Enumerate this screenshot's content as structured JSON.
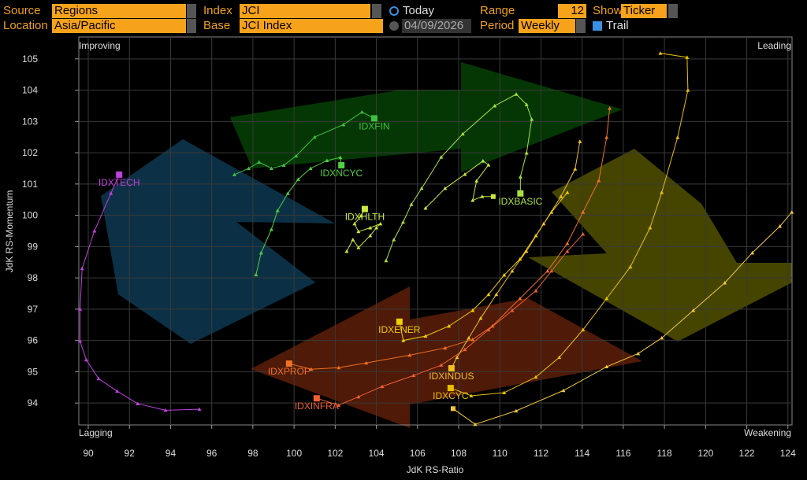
{
  "controls": {
    "source_label": "Source",
    "source": "Regions",
    "index_label": "Index",
    "index": "JCI",
    "today": "Today",
    "range_label": "Range",
    "range": "12",
    "show_label": "Show",
    "show": "Ticker",
    "location_label": "Location",
    "location": "Asia/Pacific",
    "base_label": "Base",
    "base": "JCI Index",
    "date": "04/09/2026",
    "period_label": "Period",
    "period": "Weekly",
    "trail": "Trail"
  },
  "chart_data": {
    "type": "rrg",
    "x_label": "JdK RS-Ratio",
    "y_label": "JdK RS-Momentum",
    "quadrants": {
      "top_left": "Improving",
      "top_right": "Leading",
      "bottom_left": "Lagging",
      "bottom_right": "Weakening"
    },
    "xlim": [
      89.54,
      124.2
    ],
    "ylim": [
      93.3,
      105.7
    ],
    "xticks": [
      90,
      92,
      94,
      96,
      98,
      100,
      102,
      104,
      106,
      108,
      110,
      112,
      114,
      116,
      118,
      120,
      122,
      124
    ],
    "yticks": [
      94,
      95,
      96,
      97,
      98,
      99,
      100,
      101,
      102,
      103,
      104,
      105
    ],
    "grid": true,
    "series": [
      {
        "name": "IDXTECH",
        "color": "#c040e0",
        "x": [
          95.4,
          93.75,
          92.4,
          91.4,
          90.5,
          89.9,
          89.6,
          89.6,
          89.7,
          90.3,
          91.1,
          91.5
        ],
        "y": [
          93.8,
          93.77,
          93.98,
          94.38,
          94.78,
          95.38,
          95.98,
          97.0,
          98.3,
          99.5,
          100.7,
          101.3
        ]
      },
      {
        "name": "IDXFIN",
        "color": "#40c040",
        "x": [
          97.1,
          97.8,
          98.3,
          98.9,
          99.5,
          100.1,
          101.0,
          102.4,
          103.3,
          103.9
        ],
        "y": [
          101.3,
          101.5,
          101.7,
          101.5,
          101.6,
          101.9,
          102.5,
          102.9,
          103.3,
          103.1
        ]
      },
      {
        "name": "IDXNCYC",
        "color": "#50d040",
        "x": [
          98.15,
          98.4,
          98.9,
          99.2,
          99.7,
          100.2,
          100.8,
          101.6,
          102.25,
          102.3
        ],
        "y": [
          98.1,
          98.8,
          99.55,
          100.15,
          100.7,
          101.15,
          101.5,
          101.75,
          101.85,
          101.6
        ]
      },
      {
        "name": "IDXHLTH",
        "color": "#c8e840",
        "x": [
          102.56,
          102.86,
          103.13,
          103.7,
          104.0,
          104.2,
          103.7,
          103.13,
          102.94,
          103.25,
          103.44
        ],
        "y": [
          98.85,
          99.22,
          98.97,
          99.35,
          99.6,
          99.73,
          99.6,
          99.48,
          99.73,
          99.98,
          100.2
        ]
      },
      {
        "name": "IDXBASIC",
        "color": "#a8e040",
        "x": [
          104.47,
          104.85,
          105.3,
          105.7,
          106.2,
          107.15,
          108.2,
          109.75,
          110.8,
          111.3,
          111.55,
          111.3,
          111.0,
          111.0
        ],
        "y": [
          98.55,
          99.22,
          99.78,
          100.35,
          100.86,
          101.86,
          102.6,
          103.5,
          103.87,
          103.54,
          103.07,
          101.99,
          101.23,
          100.7
        ]
      },
      {
        "color": "#c8e840",
        "x": [
          106.39,
          107.34,
          108.3,
          109.18,
          109.45,
          108.87,
          108.68,
          109.14,
          109.68
        ],
        "y": [
          100.23,
          100.86,
          101.31,
          101.74,
          101.61,
          101.1,
          100.48,
          100.6,
          100.6
        ]
      },
      {
        "name": "IDXENER",
        "color": "#f0d000",
        "x": [
          113.28,
          112.51,
          111.75,
          110.98,
          110.21,
          109.45,
          108.68,
          107.53,
          106.39,
          105.31,
          105.12
        ],
        "y": [
          100.73,
          100.1,
          99.35,
          98.6,
          98.09,
          97.47,
          96.96,
          96.46,
          96.14,
          96.0,
          96.6
        ]
      },
      {
        "name": "IDXPROP",
        "color": "#f07020",
        "x": [
          115.34,
          115.19,
          114.81,
          114.04,
          113.28,
          112.32,
          110.98,
          109.64,
          108.68,
          107.34,
          105.62,
          103.51,
          102.17,
          100.83,
          99.76
        ],
        "y": [
          103.42,
          102.49,
          101.11,
          100.1,
          99.1,
          98.22,
          97.34,
          96.46,
          96.03,
          95.76,
          95.53,
          95.28,
          95.13,
          95.08,
          95.26
        ]
      },
      {
        "name": "IDXINFRA",
        "color": "#f06030",
        "x": [
          114.04,
          113.28,
          112.51,
          111.75,
          110.6,
          109.45,
          108.3,
          107.15,
          105.81,
          104.28,
          103.13,
          102.17,
          101.1
        ],
        "y": [
          99.4,
          98.85,
          98.22,
          97.59,
          96.96,
          96.34,
          95.71,
          95.21,
          94.88,
          94.53,
          94.2,
          93.93,
          94.15
        ]
      },
      {
        "name": "IDXINDUS",
        "color": "#f0c020",
        "x": [
          113.89,
          113.66,
          112.97,
          112.13,
          111.29,
          110.6,
          109.83,
          109.07,
          108.49,
          107.92,
          107.65
        ],
        "y": [
          102.36,
          101.48,
          100.6,
          99.73,
          98.85,
          98.22,
          97.47,
          96.71,
          96.08,
          95.46,
          95.11
        ]
      },
      {
        "name": "IDXCYC",
        "color": "#e8c000",
        "x": [
          117.8,
          119.1,
          119.14,
          118.64,
          117.87,
          117.3,
          116.34,
          115.19,
          114.04,
          112.89,
          111.75,
          110.21,
          108.61,
          107.61
        ],
        "y": [
          105.18,
          105.05,
          104.0,
          102.49,
          100.73,
          99.6,
          98.35,
          97.34,
          96.34,
          95.46,
          94.83,
          94.33,
          94.23,
          94.48
        ]
      },
      {
        "color": "#f0c840",
        "x": [
          124.19,
          123.61,
          122.27,
          120.93,
          119.4,
          117.87,
          116.72,
          115.19,
          113.09,
          110.79,
          108.8,
          107.73
        ],
        "y": [
          100.1,
          99.65,
          98.8,
          97.84,
          96.96,
          96.08,
          95.58,
          95.16,
          94.4,
          93.75,
          93.32,
          93.82
        ]
      }
    ]
  }
}
